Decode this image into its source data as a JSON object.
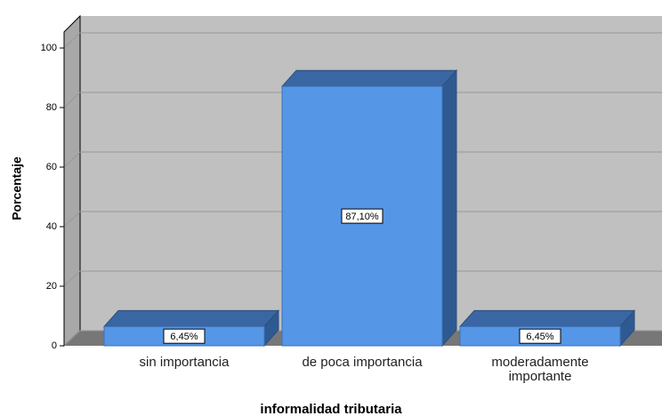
{
  "chart_data": {
    "type": "bar3d",
    "categories": [
      "sin importancia",
      "de poca importancia",
      "moderadamente importante"
    ],
    "values": [
      6.45,
      87.1,
      6.45
    ],
    "value_labels": [
      "6,45%",
      "87,10%",
      "6,45%"
    ],
    "ylabel": "Porcentaje",
    "xlabel": "informalidad tributaria",
    "ylim": [
      0,
      100
    ],
    "yticks": [
      0,
      20,
      40,
      60,
      80,
      100
    ],
    "grid": true,
    "color": "#5596e6"
  }
}
